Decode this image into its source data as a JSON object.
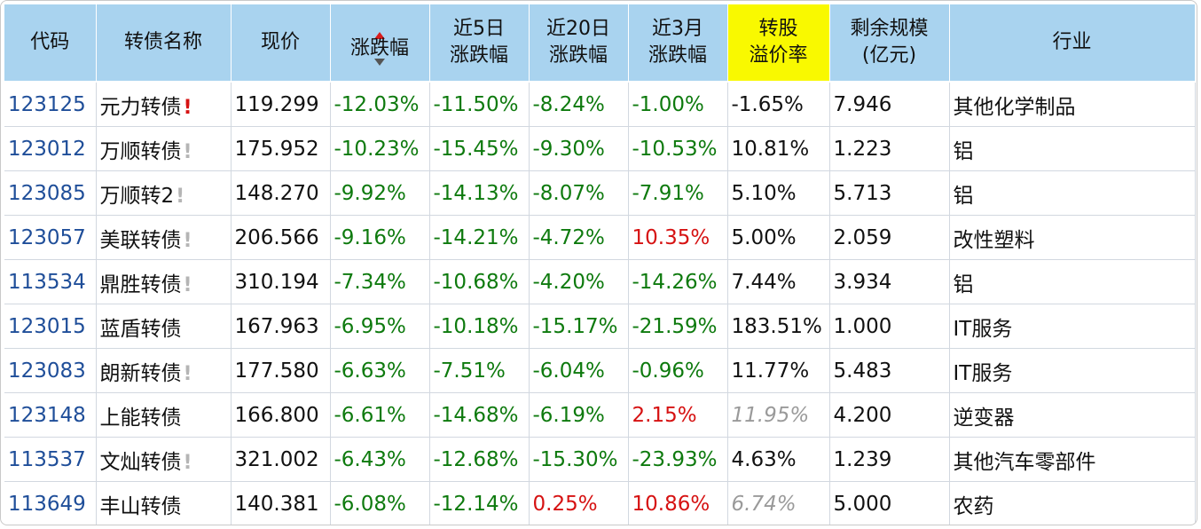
{
  "table": {
    "headers": [
      {
        "l1": "代码",
        "l2": ""
      },
      {
        "l1": "转债名称",
        "l2": ""
      },
      {
        "l1": "现价",
        "l2": ""
      },
      {
        "l1": "涨跌幅",
        "l2": ""
      },
      {
        "l1": "近5日",
        "l2": "涨跌幅"
      },
      {
        "l1": "近20日",
        "l2": "涨跌幅"
      },
      {
        "l1": "近3月",
        "l2": "涨跌幅"
      },
      {
        "l1": "转股",
        "l2": "溢价率"
      },
      {
        "l1": "剩余规模",
        "l2": "(亿元)"
      },
      {
        "l1": "行业",
        "l2": ""
      }
    ],
    "sorted_column": "涨跌幅",
    "sort_direction": "ascending",
    "highlight_color": "#f9f900",
    "rows": [
      {
        "code": "123125",
        "name": "元力转债",
        "flag": "!",
        "flag_color": "red",
        "price": "119.299",
        "chg": "-12.03%",
        "chg5": "-11.50%",
        "chg20": "-8.24%",
        "chg3m": "-1.00%",
        "premium": "-1.65%",
        "scale": "7.946",
        "industry": "其他化学制品"
      },
      {
        "code": "123012",
        "name": "万顺转债",
        "flag": "!",
        "flag_color": "gray",
        "price": "175.952",
        "chg": "-10.23%",
        "chg5": "-15.45%",
        "chg20": "-9.30%",
        "chg3m": "-10.53%",
        "premium": "10.81%",
        "scale": "1.223",
        "industry": "铝"
      },
      {
        "code": "123085",
        "name": "万顺转2",
        "flag": "!",
        "flag_color": "gray",
        "price": "148.270",
        "chg": "-9.92%",
        "chg5": "-14.13%",
        "chg20": "-8.07%",
        "chg3m": "-7.91%",
        "premium": "5.10%",
        "scale": "5.713",
        "industry": "铝"
      },
      {
        "code": "123057",
        "name": "美联转债",
        "flag": "!",
        "flag_color": "gray",
        "price": "206.566",
        "chg": "-9.16%",
        "chg5": "-14.21%",
        "chg20": "-4.72%",
        "chg3m": "10.35%",
        "premium": "5.00%",
        "scale": "2.059",
        "industry": "改性塑料"
      },
      {
        "code": "113534",
        "name": "鼎胜转债",
        "flag": "!",
        "flag_color": "gray",
        "price": "310.194",
        "chg": "-7.34%",
        "chg5": "-10.68%",
        "chg20": "-4.20%",
        "chg3m": "-14.26%",
        "premium": "7.44%",
        "scale": "3.934",
        "industry": "铝"
      },
      {
        "code": "123015",
        "name": "蓝盾转债",
        "flag": "",
        "flag_color": "",
        "price": "167.963",
        "chg": "-6.95%",
        "chg5": "-10.18%",
        "chg20": "-15.17%",
        "chg3m": "-21.59%",
        "premium": "183.51%",
        "scale": "1.000",
        "industry": "IT服务"
      },
      {
        "code": "123083",
        "name": "朗新转债",
        "flag": "!",
        "flag_color": "gray",
        "price": "177.580",
        "chg": "-6.63%",
        "chg5": "-7.51%",
        "chg20": "-6.04%",
        "chg3m": "-0.96%",
        "premium": "11.77%",
        "scale": "5.483",
        "industry": "IT服务"
      },
      {
        "code": "123148",
        "name": "上能转债",
        "flag": "",
        "flag_color": "",
        "price": "166.800",
        "chg": "-6.61%",
        "chg5": "-14.68%",
        "chg20": "-6.19%",
        "chg3m": "2.15%",
        "premium": "11.95%",
        "premium_style": "grey",
        "scale": "4.200",
        "industry": "逆变器"
      },
      {
        "code": "113537",
        "name": "文灿转债",
        "flag": "!",
        "flag_color": "gray",
        "price": "321.002",
        "chg": "-6.43%",
        "chg5": "-12.68%",
        "chg20": "-15.30%",
        "chg3m": "-23.93%",
        "premium": "4.63%",
        "scale": "1.239",
        "industry": "其他汽车零部件"
      },
      {
        "code": "113649",
        "name": "丰山转债",
        "flag": "",
        "flag_color": "",
        "price": "140.381",
        "chg": "-6.08%",
        "chg5": "-12.14%",
        "chg20": "0.25%",
        "chg3m": "10.86%",
        "premium": "6.74%",
        "premium_style": "grey",
        "scale": "5.000",
        "industry": "农药"
      }
    ]
  }
}
